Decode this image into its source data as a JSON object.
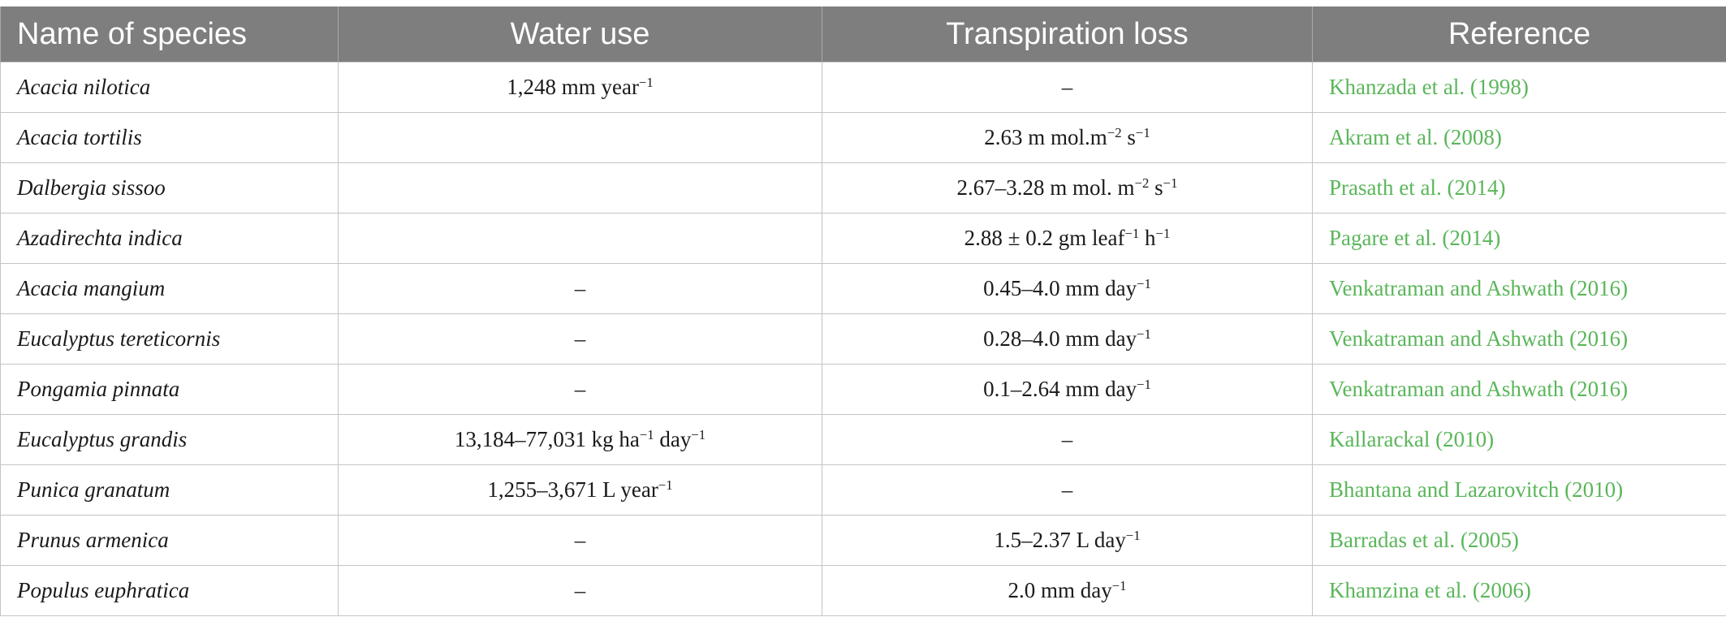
{
  "table": {
    "headers": [
      "Name of species",
      "Water use",
      "Transpiration loss",
      "Reference"
    ],
    "rows": [
      {
        "species": "Acacia nilotica",
        "water_use": [
          "1,248 mm year",
          "−1",
          ""
        ],
        "transpiration": [
          "–"
        ],
        "reference": "Khanzada et al. (1998)"
      },
      {
        "species": "Acacia tortilis",
        "water_use": [
          ""
        ],
        "transpiration": [
          "2.63 m mol.m",
          "−2",
          " s",
          "−1",
          ""
        ],
        "reference": "Akram et al. (2008)"
      },
      {
        "species": "Dalbergia sissoo",
        "water_use": [
          ""
        ],
        "transpiration": [
          "2.67–3.28 m mol. m",
          "−2",
          " s",
          "−1",
          ""
        ],
        "reference": "Prasath et al. (2014)"
      },
      {
        "species": "Azadirechta indica",
        "water_use": [
          ""
        ],
        "transpiration": [
          "2.88 ± 0.2 gm leaf",
          "−1",
          " h",
          "−1",
          ""
        ],
        "reference": "Pagare et al. (2014)"
      },
      {
        "species": "Acacia mangium",
        "water_use": [
          "–"
        ],
        "transpiration": [
          "0.45–4.0 mm day",
          "−1",
          ""
        ],
        "reference": "Venkatraman and Ashwath (2016)"
      },
      {
        "species": "Eucalyptus tereticornis",
        "water_use": [
          "–"
        ],
        "transpiration": [
          "0.28–4.0 mm day",
          "−1",
          ""
        ],
        "reference": "Venkatraman and Ashwath (2016)"
      },
      {
        "species": "Pongamia pinnata",
        "water_use": [
          "–"
        ],
        "transpiration": [
          "0.1–2.64 mm day",
          "−1",
          ""
        ],
        "reference": "Venkatraman and Ashwath (2016)"
      },
      {
        "species": "Eucalyptus grandis",
        "water_use": [
          "13,184–77,031 kg ha",
          "−1",
          " day",
          "−1",
          ""
        ],
        "transpiration": [
          "–"
        ],
        "reference": "Kallarackal (2010)"
      },
      {
        "species": "Punica granatum",
        "water_use": [
          "1,255–3,671 L year",
          "−1",
          ""
        ],
        "transpiration": [
          "–"
        ],
        "reference": "Bhantana and Lazarovitch (2010)"
      },
      {
        "species": "Prunus armenica",
        "water_use": [
          "–"
        ],
        "transpiration": [
          "1.5–2.37 L day",
          "−1",
          ""
        ],
        "reference": "Barradas et al. (2005)"
      },
      {
        "species": "Populus euphratica",
        "water_use": [
          "–"
        ],
        "transpiration": [
          "2.0 mm day",
          "−1",
          ""
        ],
        "reference": "Khamzina et al. (2006)"
      }
    ]
  },
  "colors": {
    "header_bg": "#7d7e7d",
    "header_text": "#ffffff",
    "link": "#5ab65a",
    "grid": "#c4c4c4"
  }
}
